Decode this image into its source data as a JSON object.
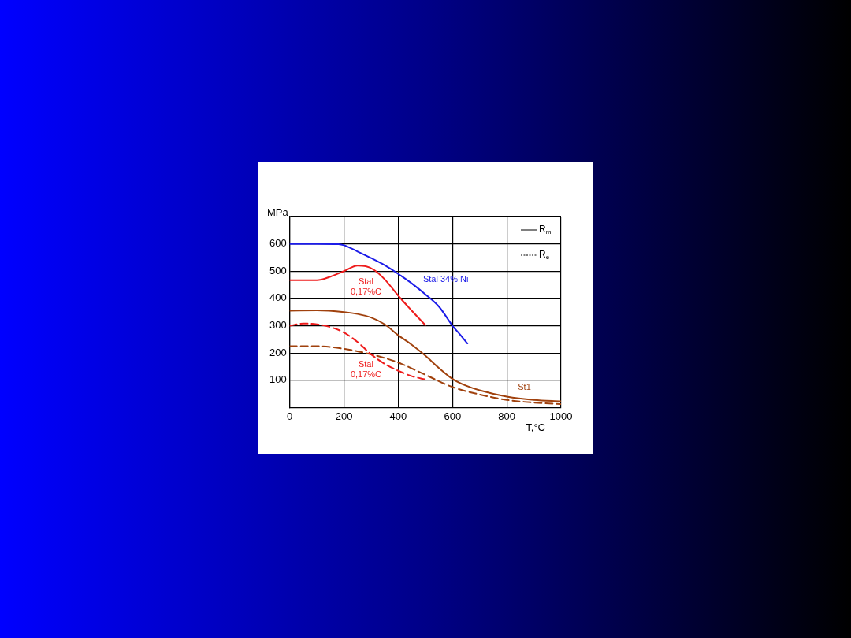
{
  "chart_data": {
    "type": "line",
    "xlabel": "T,°C",
    "ylabel": "MPa",
    "xlim": [
      0,
      1000
    ],
    "xticks": [
      0,
      200,
      400,
      600,
      800,
      1000
    ],
    "ylim": [
      0,
      700
    ],
    "yticks": [
      100,
      200,
      300,
      400,
      500,
      600,
      {
        "value": 700,
        "label": null
      }
    ],
    "grid": true,
    "marker": "none",
    "series": [
      {
        "color": "#1c1ce8",
        "line_style": "solid",
        "x": [
          0,
          100,
          180,
          200,
          250,
          300,
          350,
          400,
          450,
          500,
          550,
          600,
          630,
          655
        ],
        "values": [
          600,
          600,
          599,
          595,
          572,
          548,
          522,
          490,
          455,
          415,
          370,
          300,
          265,
          235
        ]
      },
      {
        "color": "#ee1c1c",
        "line_style": "solid",
        "x": [
          0,
          100,
          150,
          200,
          250,
          280,
          310,
          350,
          400,
          450,
          500
        ],
        "values": [
          467,
          467,
          480,
          500,
          520,
          518,
          505,
          470,
          410,
          355,
          302
        ]
      },
      {
        "color": "#ee1c1c",
        "line_style": "dashed",
        "x": [
          0,
          50,
          100,
          150,
          200,
          250,
          300,
          350,
          400,
          450,
          500
        ],
        "values": [
          300,
          308,
          305,
          295,
          275,
          240,
          195,
          160,
          135,
          115,
          103
        ]
      },
      {
        "color": "#a0410d",
        "line_style": "solid",
        "x": [
          0,
          100,
          200,
          250,
          300,
          350,
          400,
          450,
          500,
          550,
          600,
          650,
          700,
          800,
          900,
          1000
        ],
        "values": [
          355,
          356,
          350,
          343,
          330,
          305,
          265,
          230,
          190,
          145,
          105,
          80,
          63,
          40,
          28,
          23
        ]
      },
      {
        "color": "#a0410d",
        "line_style": "dashed",
        "x": [
          0,
          100,
          200,
          300,
          400,
          500,
          600,
          700,
          800,
          900,
          1000
        ],
        "values": [
          225,
          225,
          215,
          195,
          165,
          120,
          75,
          48,
          28,
          18,
          13
        ]
      }
    ],
    "annotations": [
      "R$_{m}$",
      "R$_{e}$",
      "Stal 34% Ni",
      "Stal\n0,17%C",
      "Stal\n0,17%C",
      "St1"
    ]
  }
}
